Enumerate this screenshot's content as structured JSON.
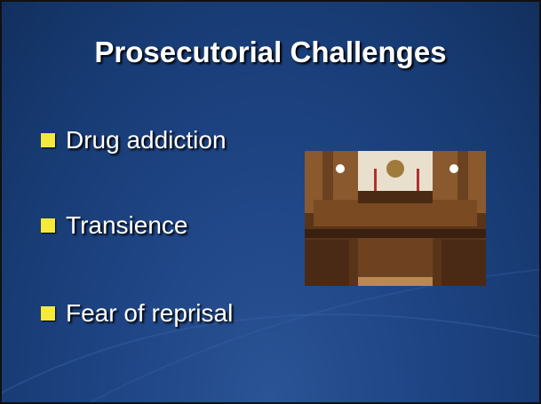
{
  "slide": {
    "title": "Prosecutorial Challenges",
    "bullets": [
      "Drug addiction",
      "Transience",
      "Fear of reprisal"
    ]
  }
}
